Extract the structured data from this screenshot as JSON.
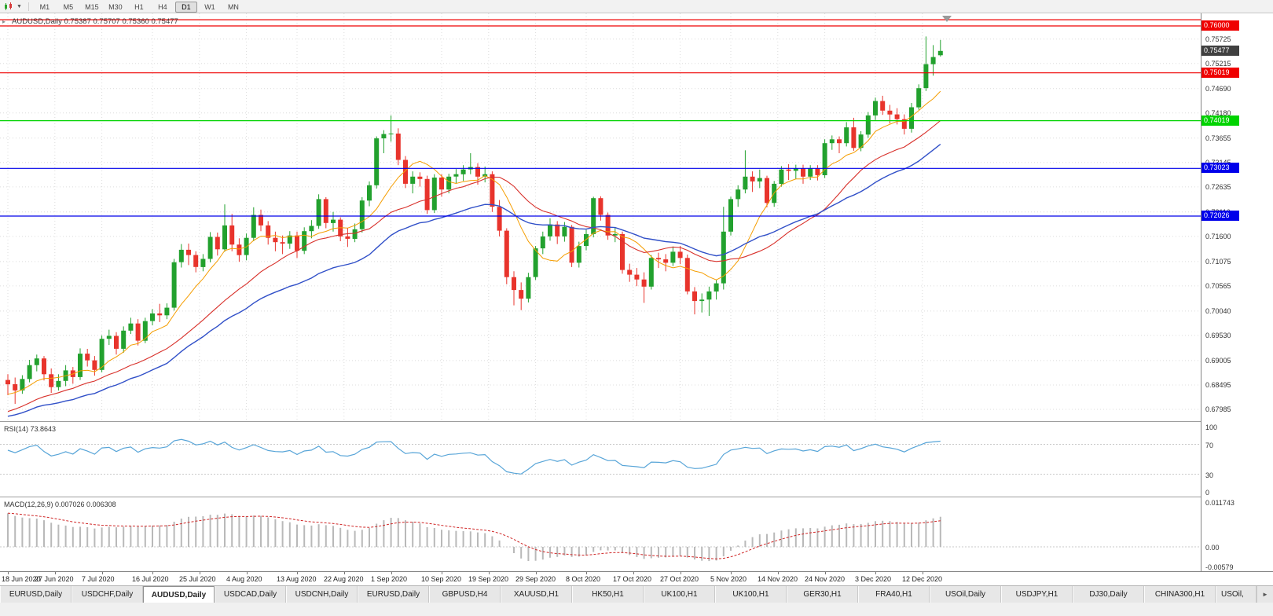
{
  "toolbar": {
    "timeframes": [
      "M1",
      "M5",
      "M15",
      "M30",
      "H1",
      "H4",
      "D1",
      "W1",
      "MN"
    ],
    "active_timeframe": "D1"
  },
  "chart": {
    "title": "AUDUSD,Daily 0.75387 0.75707 0.75360 0.75477",
    "one_click_trading_icon": "▸"
  },
  "chart_data": {
    "type": "candlestick",
    "symbol": "AUDUSD",
    "timeframe": "Daily",
    "ohlc": {
      "open": "0.75387",
      "high": "0.75707",
      "low": "0.75360",
      "close": "0.75477"
    },
    "y_axis_labels": [
      "0.75725",
      "0.75215",
      "0.74690",
      "0.74180",
      "0.73655",
      "0.73145",
      "0.72635",
      "0.72110",
      "0.71600",
      "0.71075",
      "0.70565",
      "0.70040",
      "0.69530",
      "0.69005",
      "0.68495",
      "0.67985"
    ],
    "x_axis": [
      {
        "label": "18 Jun 2020",
        "bar": 0
      },
      {
        "label": "27 Jun 2020",
        "bar": 6.5
      },
      {
        "label": "7 Jul 2020",
        "bar": 13
      },
      {
        "label": "16 Jul 2020",
        "bar": 20
      },
      {
        "label": "25 Jul 2020",
        "bar": 26.5
      },
      {
        "label": "4 Aug 2020",
        "bar": 33
      },
      {
        "label": "13 Aug 2020",
        "bar": 40
      },
      {
        "label": "22 Aug 2020",
        "bar": 46.5
      },
      {
        "label": "1 Sep 2020",
        "bar": 53
      },
      {
        "label": "10 Sep 2020",
        "bar": 60
      },
      {
        "label": "19 Sep 2020",
        "bar": 66.5
      },
      {
        "label": "29 Sep 2020",
        "bar": 73
      },
      {
        "label": "8 Oct 2020",
        "bar": 80
      },
      {
        "label": "17 Oct 2020",
        "bar": 86.5
      },
      {
        "label": "27 Oct 2020",
        "bar": 93
      },
      {
        "label": "5 Nov 2020",
        "bar": 100
      },
      {
        "label": "14 Nov 2020",
        "bar": 106.5
      },
      {
        "label": "24 Nov 2020",
        "bar": 113
      },
      {
        "label": "3 Dec 2020",
        "bar": 120
      },
      {
        "label": "12 Dec 2020",
        "bar": 126.5
      }
    ],
    "hlines": [
      {
        "price": 0.7613,
        "color": "#ef0000",
        "label": "",
        "show_label": false
      },
      {
        "price": 0.76,
        "color": "#ef0000",
        "label": "0.76000",
        "show_label": true
      },
      {
        "price": 0.75019,
        "color": "#ef0000",
        "label": "0.75019",
        "show_label": true
      },
      {
        "price": 0.74019,
        "color": "#00d300",
        "label": "0.74019",
        "show_label": true
      },
      {
        "price": 0.73023,
        "color": "#0000ea",
        "label": "0.73023",
        "show_label": true
      },
      {
        "price": 0.72026,
        "color": "#0000ea",
        "label": "0.72026",
        "show_label": true
      }
    ],
    "current_price": {
      "label": "0.75477",
      "value": 0.75477
    },
    "candles": [
      [
        0.686,
        0.6872,
        0.6828,
        0.6851
      ],
      [
        0.6851,
        0.6865,
        0.681,
        0.6838
      ],
      [
        0.6838,
        0.687,
        0.6831,
        0.6862
      ],
      [
        0.6862,
        0.6902,
        0.6855,
        0.6891
      ],
      [
        0.6891,
        0.6913,
        0.6878,
        0.6905
      ],
      [
        0.6905,
        0.691,
        0.6859,
        0.6872
      ],
      [
        0.6872,
        0.6884,
        0.6833,
        0.6845
      ],
      [
        0.6845,
        0.6872,
        0.6838,
        0.6858
      ],
      [
        0.6858,
        0.6891,
        0.6847,
        0.688
      ],
      [
        0.688,
        0.6887,
        0.6852,
        0.6866
      ],
      [
        0.6866,
        0.6926,
        0.686,
        0.6915
      ],
      [
        0.6915,
        0.6925,
        0.6888,
        0.6901
      ],
      [
        0.6901,
        0.691,
        0.6869,
        0.6881
      ],
      [
        0.6881,
        0.6953,
        0.6876,
        0.6946
      ],
      [
        0.6946,
        0.6965,
        0.6933,
        0.6952
      ],
      [
        0.6952,
        0.696,
        0.6913,
        0.6925
      ],
      [
        0.6925,
        0.6972,
        0.6917,
        0.6963
      ],
      [
        0.6963,
        0.699,
        0.6956,
        0.6978
      ],
      [
        0.6978,
        0.6987,
        0.6932,
        0.6942
      ],
      [
        0.6942,
        0.699,
        0.6937,
        0.6983
      ],
      [
        0.6983,
        0.7008,
        0.6974,
        0.6999
      ],
      [
        0.6999,
        0.7019,
        0.6981,
        0.6995
      ],
      [
        0.6995,
        0.702,
        0.6987,
        0.7011
      ],
      [
        0.7011,
        0.7113,
        0.7005,
        0.7106
      ],
      [
        0.7106,
        0.7144,
        0.7095,
        0.7132
      ],
      [
        0.7132,
        0.7145,
        0.71,
        0.7121
      ],
      [
        0.7121,
        0.7129,
        0.7085,
        0.7096
      ],
      [
        0.7096,
        0.7123,
        0.7087,
        0.7113
      ],
      [
        0.7113,
        0.7169,
        0.7106,
        0.7159
      ],
      [
        0.7159,
        0.7168,
        0.712,
        0.7133
      ],
      [
        0.7133,
        0.7227,
        0.7128,
        0.7183
      ],
      [
        0.7183,
        0.7207,
        0.7129,
        0.7143
      ],
      [
        0.7143,
        0.7156,
        0.7107,
        0.7121
      ],
      [
        0.7121,
        0.7166,
        0.711,
        0.7157
      ],
      [
        0.7157,
        0.7221,
        0.715,
        0.7205
      ],
      [
        0.7205,
        0.7216,
        0.7171,
        0.7183
      ],
      [
        0.7183,
        0.7192,
        0.7143,
        0.7157
      ],
      [
        0.7157,
        0.717,
        0.7129,
        0.7148
      ],
      [
        0.7148,
        0.7162,
        0.7123,
        0.7145
      ],
      [
        0.7145,
        0.7171,
        0.7134,
        0.7162
      ],
      [
        0.7162,
        0.717,
        0.7115,
        0.713
      ],
      [
        0.713,
        0.7179,
        0.7123,
        0.7171
      ],
      [
        0.7171,
        0.7194,
        0.7156,
        0.7182
      ],
      [
        0.7182,
        0.7248,
        0.7176,
        0.7238
      ],
      [
        0.7238,
        0.7242,
        0.7177,
        0.7188
      ],
      [
        0.7188,
        0.7211,
        0.717,
        0.7195
      ],
      [
        0.7195,
        0.72,
        0.715,
        0.716
      ],
      [
        0.716,
        0.7177,
        0.7138,
        0.7155
      ],
      [
        0.7155,
        0.7187,
        0.7148,
        0.7175
      ],
      [
        0.7175,
        0.7242,
        0.7168,
        0.7235
      ],
      [
        0.7235,
        0.7275,
        0.7223,
        0.7267
      ],
      [
        0.7267,
        0.7369,
        0.726,
        0.7365
      ],
      [
        0.7365,
        0.7382,
        0.7334,
        0.7374
      ],
      [
        0.7374,
        0.7413,
        0.7358,
        0.7375
      ],
      [
        0.7375,
        0.7386,
        0.7309,
        0.732
      ],
      [
        0.732,
        0.7328,
        0.7261,
        0.727
      ],
      [
        0.727,
        0.7296,
        0.725,
        0.7285
      ],
      [
        0.7285,
        0.7294,
        0.7264,
        0.728
      ],
      [
        0.728,
        0.7287,
        0.7207,
        0.7215
      ],
      [
        0.7215,
        0.729,
        0.7209,
        0.7283
      ],
      [
        0.7283,
        0.729,
        0.7243,
        0.7258
      ],
      [
        0.7258,
        0.7291,
        0.725,
        0.7285
      ],
      [
        0.7285,
        0.7301,
        0.7271,
        0.729
      ],
      [
        0.729,
        0.7309,
        0.7276,
        0.73
      ],
      [
        0.73,
        0.7334,
        0.729,
        0.7305
      ],
      [
        0.7305,
        0.7313,
        0.7268,
        0.7285
      ],
      [
        0.7285,
        0.7306,
        0.7273,
        0.729
      ],
      [
        0.729,
        0.7296,
        0.7211,
        0.7222
      ],
      [
        0.7222,
        0.7236,
        0.716,
        0.7172
      ],
      [
        0.7172,
        0.7177,
        0.706,
        0.7075
      ],
      [
        0.7075,
        0.7087,
        0.7016,
        0.7048
      ],
      [
        0.7048,
        0.7064,
        0.7006,
        0.703
      ],
      [
        0.703,
        0.7084,
        0.7022,
        0.7075
      ],
      [
        0.7075,
        0.714,
        0.7069,
        0.7135
      ],
      [
        0.7135,
        0.717,
        0.7123,
        0.716
      ],
      [
        0.716,
        0.7198,
        0.7151,
        0.7185
      ],
      [
        0.7185,
        0.7192,
        0.7144,
        0.716
      ],
      [
        0.716,
        0.719,
        0.7149,
        0.718
      ],
      [
        0.718,
        0.7184,
        0.7096,
        0.7105
      ],
      [
        0.7105,
        0.7149,
        0.7095,
        0.714
      ],
      [
        0.714,
        0.7174,
        0.7131,
        0.7165
      ],
      [
        0.7165,
        0.7243,
        0.7158,
        0.724
      ],
      [
        0.724,
        0.7244,
        0.7193,
        0.7205
      ],
      [
        0.7205,
        0.721,
        0.7153,
        0.7162
      ],
      [
        0.7162,
        0.7179,
        0.7148,
        0.7165
      ],
      [
        0.7165,
        0.717,
        0.7082,
        0.709
      ],
      [
        0.709,
        0.7103,
        0.7065,
        0.708
      ],
      [
        0.708,
        0.7094,
        0.7056,
        0.707
      ],
      [
        0.707,
        0.7085,
        0.7021,
        0.7055
      ],
      [
        0.7055,
        0.7121,
        0.7049,
        0.7115
      ],
      [
        0.7115,
        0.7126,
        0.7094,
        0.7112
      ],
      [
        0.7112,
        0.7123,
        0.7087,
        0.7105
      ],
      [
        0.7105,
        0.7139,
        0.7098,
        0.7128
      ],
      [
        0.7128,
        0.714,
        0.7102,
        0.7115
      ],
      [
        0.7115,
        0.7122,
        0.7039,
        0.7045
      ],
      [
        0.7045,
        0.7054,
        0.6997,
        0.7025
      ],
      [
        0.7025,
        0.7041,
        0.7001,
        0.7028
      ],
      [
        0.7028,
        0.7055,
        0.6994,
        0.7045
      ],
      [
        0.7045,
        0.707,
        0.7028,
        0.7062
      ],
      [
        0.7062,
        0.7222,
        0.7049,
        0.717
      ],
      [
        0.717,
        0.7243,
        0.7162,
        0.7238
      ],
      [
        0.7238,
        0.7267,
        0.7222,
        0.7258
      ],
      [
        0.7258,
        0.734,
        0.725,
        0.7285
      ],
      [
        0.7285,
        0.7296,
        0.7253,
        0.7275
      ],
      [
        0.7275,
        0.73,
        0.7261,
        0.7282
      ],
      [
        0.7282,
        0.7287,
        0.7221,
        0.723
      ],
      [
        0.723,
        0.7276,
        0.7222,
        0.727
      ],
      [
        0.727,
        0.7307,
        0.7264,
        0.73
      ],
      [
        0.73,
        0.7311,
        0.7278,
        0.7297
      ],
      [
        0.7297,
        0.731,
        0.728,
        0.7302
      ],
      [
        0.7302,
        0.731,
        0.727,
        0.7285
      ],
      [
        0.7285,
        0.7309,
        0.7278,
        0.7302
      ],
      [
        0.7302,
        0.7309,
        0.7277,
        0.7288
      ],
      [
        0.7288,
        0.7363,
        0.7282,
        0.7355
      ],
      [
        0.7355,
        0.7371,
        0.7341,
        0.7363
      ],
      [
        0.7363,
        0.7369,
        0.7334,
        0.7355
      ],
      [
        0.7355,
        0.7399,
        0.7348,
        0.7388
      ],
      [
        0.7388,
        0.7408,
        0.7339,
        0.7345
      ],
      [
        0.7345,
        0.738,
        0.7338,
        0.7373
      ],
      [
        0.7373,
        0.742,
        0.7366,
        0.7413
      ],
      [
        0.7413,
        0.745,
        0.7403,
        0.7443
      ],
      [
        0.7443,
        0.7454,
        0.7414,
        0.7423
      ],
      [
        0.7423,
        0.7435,
        0.7396,
        0.7415
      ],
      [
        0.7415,
        0.7428,
        0.7394,
        0.7405
      ],
      [
        0.7405,
        0.7415,
        0.7373,
        0.7385
      ],
      [
        0.7385,
        0.7439,
        0.7377,
        0.743
      ],
      [
        0.743,
        0.7478,
        0.7425,
        0.747
      ],
      [
        0.747,
        0.7578,
        0.7464,
        0.752
      ],
      [
        0.752,
        0.756,
        0.7496,
        0.7535
      ],
      [
        0.75387,
        0.75707,
        0.7536,
        0.75477
      ]
    ]
  },
  "rsi": {
    "label": "RSI(14) 73.8643",
    "levels": [
      {
        "text": "100",
        "value": 100
      },
      {
        "text": "70",
        "value": 70
      },
      {
        "text": "30",
        "value": 30
      },
      {
        "text": "0",
        "value": 0
      }
    ]
  },
  "macd": {
    "label": "MACD(12,26,9) 0.007026 0.006308",
    "axis": [
      {
        "text": "0.011743",
        "value": 0.011743
      },
      {
        "text": "0.00",
        "value": 0
      },
      {
        "text": "-0.00579",
        "value": -0.00579
      }
    ],
    "range": {
      "max": 0.011743,
      "min": -0.00579
    }
  },
  "tabs": [
    "EURUSD,Daily",
    "USDCHF,Daily",
    "AUDUSD,Daily",
    "USDCAD,Daily",
    "USDCNH,Daily",
    "EURUSD,Daily",
    "GBPUSD,H4",
    "XAUUSD,H1",
    "HK50,H1",
    "UK100,H1",
    "UK100,H1",
    "GER30,H1",
    "FRA40,H1",
    "USOil,Daily",
    "USDJPY,H1",
    "DJ30,Daily",
    "CHINA300,H1",
    "USOil,"
  ],
  "active_tab_index": 2,
  "tab_scroll_right_icon": "►",
  "colors": {
    "bull": "#22a12e",
    "bear": "#e8342c",
    "ma_fast": "#f59d00",
    "ma_mid": "#d8302a",
    "ma_slow": "#3150c8",
    "rsi_line": "#58a5d8",
    "macd_hist": "#b9b9b9",
    "macd_signal": "#cf2626",
    "grid": "#dcdcdc",
    "current_badge": "#404040"
  }
}
